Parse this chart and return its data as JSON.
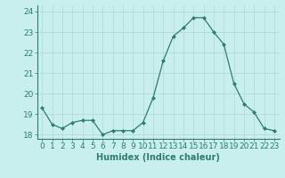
{
  "x": [
    0,
    1,
    2,
    3,
    4,
    5,
    6,
    7,
    8,
    9,
    10,
    11,
    12,
    13,
    14,
    15,
    16,
    17,
    18,
    19,
    20,
    21,
    22,
    23
  ],
  "y": [
    19.3,
    18.5,
    18.3,
    18.6,
    18.7,
    18.7,
    18.0,
    18.2,
    18.2,
    18.2,
    18.6,
    19.8,
    21.6,
    22.8,
    23.2,
    23.7,
    23.7,
    23.0,
    22.4,
    20.5,
    19.5,
    19.1,
    18.3,
    18.2
  ],
  "line_color": "#2e7d6e",
  "marker": "D",
  "marker_size": 2.0,
  "bg_color": "#c8eeee",
  "grid_color": "#b0d8d0",
  "xlabel": "Humidex (Indice chaleur)",
  "xlabel_fontsize": 7,
  "ylabel_fontsize": 6.5,
  "tick_fontsize": 6.5,
  "ylim": [
    17.8,
    24.3
  ],
  "xlim": [
    -0.5,
    23.5
  ],
  "yticks": [
    18,
    19,
    20,
    21,
    22,
    23,
    24
  ],
  "xticks": [
    0,
    1,
    2,
    3,
    4,
    5,
    6,
    7,
    8,
    9,
    10,
    11,
    12,
    13,
    14,
    15,
    16,
    17,
    18,
    19,
    20,
    21,
    22,
    23
  ]
}
